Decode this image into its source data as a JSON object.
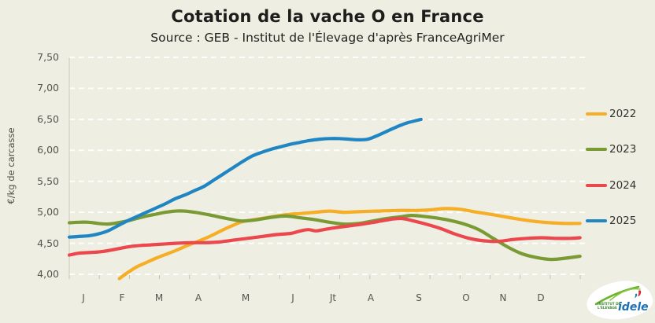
{
  "header": {
    "title": "Cotation de la vache O en France",
    "subtitle": "Source : GEB - Institut de l'Élevage d'après FranceAgriMer"
  },
  "legend": {
    "items": [
      {
        "label": "2022",
        "color": "#f6ae27"
      },
      {
        "label": "2023",
        "color": "#7a9a33"
      },
      {
        "label": "2024",
        "color": "#ec474d"
      },
      {
        "label": "2025",
        "color": "#1f86c3"
      }
    ]
  },
  "chart_data": {
    "type": "line",
    "title": "Cotation de la vache O en France",
    "xlabel": "",
    "ylabel": "€/kg de carcasse",
    "x_unit": "week_of_year",
    "x_labels": [
      "J",
      "F",
      "M",
      "A",
      "M",
      "J",
      "Jt",
      "A",
      "S",
      "O",
      "N",
      "D"
    ],
    "x_month_start_weeks": [
      1,
      5,
      9,
      13,
      18,
      23,
      27,
      31,
      36,
      41,
      45,
      49
    ],
    "ylim": [
      4.0,
      7.5
    ],
    "y_tick_values": [
      7.5,
      7.0,
      6.5,
      6.0,
      5.5,
      5.0,
      4.5,
      4.0
    ],
    "y_tick_labels": [
      "7,50",
      "7,00",
      "6,50",
      "6,00",
      "5,50",
      "5,00",
      "4,50",
      "4,00"
    ],
    "grid": "horizontal-dashed-white",
    "legend_position": "right",
    "series": [
      {
        "name": "2022",
        "color": "#f6ae27",
        "points": [
          [
            6.2,
            3.93
          ],
          [
            7,
            4.02
          ],
          [
            8,
            4.12
          ],
          [
            9,
            4.19
          ],
          [
            10,
            4.26
          ],
          [
            11,
            4.32
          ],
          [
            12,
            4.38
          ],
          [
            13.2,
            4.46
          ],
          [
            14.5,
            4.54
          ],
          [
            15.7,
            4.62
          ],
          [
            17,
            4.72
          ],
          [
            18,
            4.79
          ],
          [
            19,
            4.85
          ],
          [
            21,
            4.9
          ],
          [
            22.5,
            4.94
          ],
          [
            24,
            4.97
          ],
          [
            25,
            4.98
          ],
          [
            26.5,
            5.0
          ],
          [
            28,
            5.02
          ],
          [
            29.5,
            5.0
          ],
          [
            31,
            5.01
          ],
          [
            33,
            5.02
          ],
          [
            35,
            5.03
          ],
          [
            37,
            5.03
          ],
          [
            38.5,
            5.04
          ],
          [
            40,
            5.06
          ],
          [
            41.5,
            5.05
          ],
          [
            43,
            5.01
          ],
          [
            45,
            4.96
          ],
          [
            46.5,
            4.92
          ],
          [
            48,
            4.88
          ],
          [
            49.5,
            4.85
          ],
          [
            51,
            4.83
          ],
          [
            52.5,
            4.82
          ],
          [
            54,
            4.82
          ]
        ]
      },
      {
        "name": "2023",
        "color": "#7a9a33",
        "points": [
          [
            1,
            4.83
          ],
          [
            2,
            4.84
          ],
          [
            3,
            4.84
          ],
          [
            4,
            4.82
          ],
          [
            5,
            4.81
          ],
          [
            6,
            4.83
          ],
          [
            7,
            4.86
          ],
          [
            8,
            4.9
          ],
          [
            9,
            4.94
          ],
          [
            10,
            4.97
          ],
          [
            11,
            5.0
          ],
          [
            12,
            5.02
          ],
          [
            13,
            5.02
          ],
          [
            14,
            5.0
          ],
          [
            15.5,
            4.96
          ],
          [
            17,
            4.91
          ],
          [
            18,
            4.88
          ],
          [
            19,
            4.86
          ],
          [
            20.5,
            4.88
          ],
          [
            22,
            4.92
          ],
          [
            23.5,
            4.94
          ],
          [
            25,
            4.91
          ],
          [
            26.5,
            4.88
          ],
          [
            28,
            4.84
          ],
          [
            29.5,
            4.81
          ],
          [
            31,
            4.82
          ],
          [
            32.5,
            4.86
          ],
          [
            34,
            4.9
          ],
          [
            35.5,
            4.93
          ],
          [
            36.5,
            4.95
          ],
          [
            37.5,
            4.94
          ],
          [
            39,
            4.91
          ],
          [
            40.5,
            4.87
          ],
          [
            42,
            4.81
          ],
          [
            43.5,
            4.72
          ],
          [
            45,
            4.58
          ],
          [
            46.5,
            4.44
          ],
          [
            48,
            4.33
          ],
          [
            49.5,
            4.27
          ],
          [
            51,
            4.24
          ],
          [
            52.5,
            4.26
          ],
          [
            54,
            4.29
          ]
        ]
      },
      {
        "name": "2024",
        "color": "#ec474d",
        "points": [
          [
            1,
            4.31
          ],
          [
            2,
            4.34
          ],
          [
            3,
            4.35
          ],
          [
            4,
            4.36
          ],
          [
            5,
            4.38
          ],
          [
            6,
            4.41
          ],
          [
            7,
            4.44
          ],
          [
            8,
            4.46
          ],
          [
            9,
            4.47
          ],
          [
            10,
            4.48
          ],
          [
            11,
            4.49
          ],
          [
            12,
            4.5
          ],
          [
            13.5,
            4.51
          ],
          [
            15,
            4.51
          ],
          [
            16.5,
            4.52
          ],
          [
            18,
            4.55
          ],
          [
            19.5,
            4.58
          ],
          [
            21,
            4.61
          ],
          [
            22.5,
            4.64
          ],
          [
            24,
            4.66
          ],
          [
            25,
            4.7
          ],
          [
            25.8,
            4.72
          ],
          [
            26.6,
            4.7
          ],
          [
            27.4,
            4.72
          ],
          [
            28.5,
            4.75
          ],
          [
            30,
            4.78
          ],
          [
            31.5,
            4.81
          ],
          [
            33,
            4.85
          ],
          [
            34.5,
            4.89
          ],
          [
            35.5,
            4.9
          ],
          [
            36.5,
            4.87
          ],
          [
            38,
            4.81
          ],
          [
            39.5,
            4.74
          ],
          [
            41,
            4.65
          ],
          [
            42.5,
            4.58
          ],
          [
            44,
            4.54
          ],
          [
            45.5,
            4.53
          ],
          [
            47,
            4.56
          ],
          [
            48.5,
            4.58
          ],
          [
            50,
            4.59
          ],
          [
            51.5,
            4.58
          ],
          [
            53,
            4.58
          ],
          [
            54,
            4.59
          ]
        ]
      },
      {
        "name": "2025",
        "color": "#1f86c3",
        "points": [
          [
            1,
            4.6
          ],
          [
            2,
            4.61
          ],
          [
            3,
            4.62
          ],
          [
            4,
            4.65
          ],
          [
            5,
            4.7
          ],
          [
            6,
            4.78
          ],
          [
            7,
            4.86
          ],
          [
            8,
            4.93
          ],
          [
            9,
            5.0
          ],
          [
            10,
            5.07
          ],
          [
            11,
            5.14
          ],
          [
            12,
            5.22
          ],
          [
            13,
            5.28
          ],
          [
            14,
            5.35
          ],
          [
            15,
            5.42
          ],
          [
            16,
            5.52
          ],
          [
            17,
            5.62
          ],
          [
            18,
            5.72
          ],
          [
            19,
            5.82
          ],
          [
            20,
            5.91
          ],
          [
            21,
            5.97
          ],
          [
            22,
            6.02
          ],
          [
            23,
            6.06
          ],
          [
            24,
            6.1
          ],
          [
            25,
            6.13
          ],
          [
            26,
            6.16
          ],
          [
            27,
            6.18
          ],
          [
            28,
            6.19
          ],
          [
            29,
            6.19
          ],
          [
            30,
            6.18
          ],
          [
            31,
            6.17
          ],
          [
            32,
            6.18
          ],
          [
            33,
            6.24
          ],
          [
            34,
            6.31
          ],
          [
            35,
            6.38
          ],
          [
            36,
            6.44
          ],
          [
            37,
            6.48
          ],
          [
            37.5,
            6.5
          ]
        ]
      }
    ]
  },
  "logo": {
    "brand": "idele",
    "institute_line1": "INSTITUT DE",
    "institute_line2": "L'ÉLEVAGE"
  }
}
